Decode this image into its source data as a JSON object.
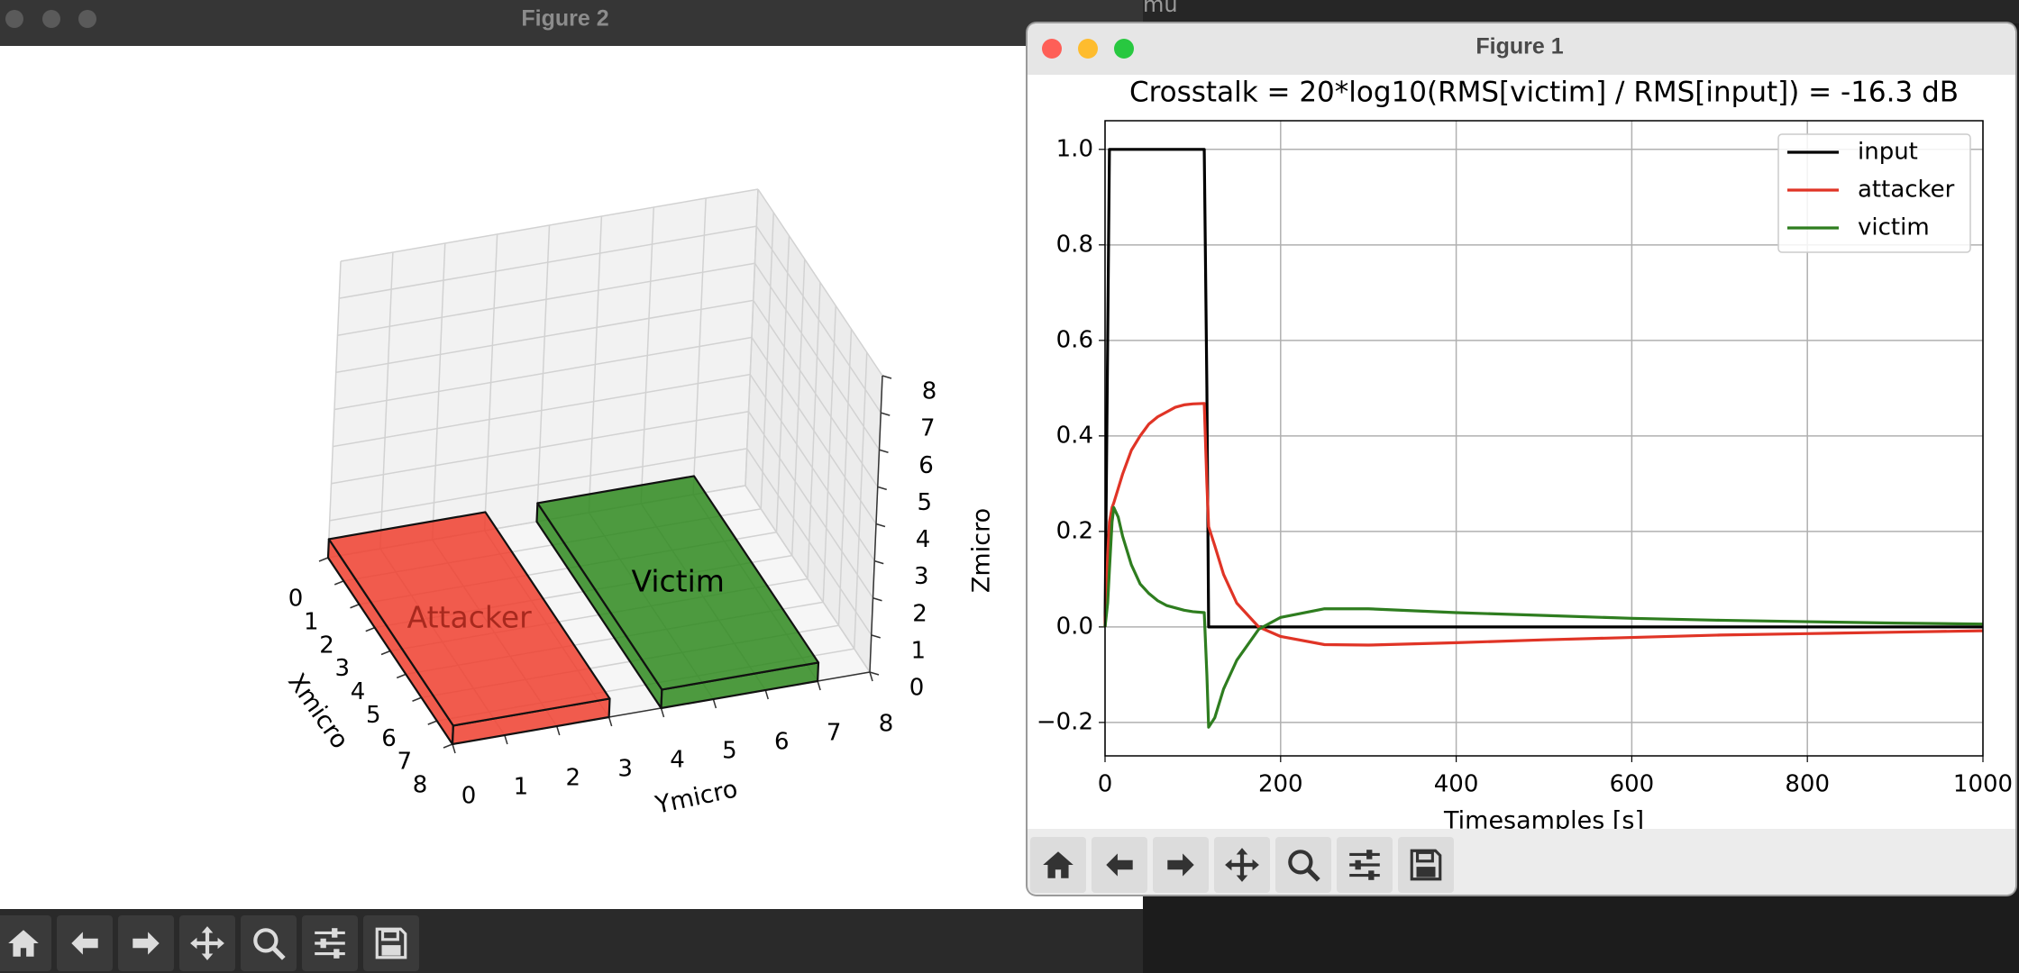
{
  "windows": {
    "background": {
      "title": "mu"
    },
    "figure2": {
      "title": "Figure 2"
    },
    "figure1": {
      "title": "Figure 1"
    }
  },
  "chart_data": [
    {
      "type": "bar3d",
      "xlabel": "Xmicro",
      "ylabel": "Ymicro",
      "zlabel": "Zmicro",
      "xlim": [
        0,
        8
      ],
      "ylim": [
        0,
        8
      ],
      "zlim": [
        0,
        8
      ],
      "xticks": [
        0,
        1,
        2,
        3,
        4,
        5,
        6,
        7,
        8
      ],
      "yticks": [
        0,
        1,
        2,
        3,
        4,
        5,
        6,
        7,
        8
      ],
      "zticks": [
        0,
        1,
        2,
        3,
        4,
        5,
        6,
        7,
        8
      ],
      "grid": true,
      "series": [
        {
          "name": "Attacker",
          "color": "#f0402f",
          "x": [
            0,
            8
          ],
          "y": [
            0,
            3
          ],
          "z": [
            0,
            0.5
          ]
        },
        {
          "name": "Victim",
          "color": "#2f8a1f",
          "x": [
            0,
            8
          ],
          "y": [
            4,
            7
          ],
          "z": [
            0,
            0.5
          ]
        }
      ]
    },
    {
      "type": "line",
      "title": "Crosstalk = 20*log10(RMS[victim] / RMS[input]) = -16.3 dB",
      "xlabel": "Timesamples [s]",
      "x": [
        0,
        3,
        5,
        8,
        10,
        15,
        20,
        30,
        40,
        50,
        60,
        70,
        80,
        90,
        100,
        113,
        116,
        118,
        125,
        135,
        150,
        175,
        200,
        250,
        300,
        400,
        500,
        600,
        700,
        800,
        900,
        1000
      ],
      "series": [
        {
          "name": "input",
          "color": "#000000",
          "values": [
            0,
            0.6,
            1,
            1,
            1,
            1,
            1,
            1,
            1,
            1,
            1,
            1,
            1,
            1,
            1,
            1,
            0.5,
            0,
            0,
            0,
            0,
            0,
            0,
            0,
            0,
            0,
            0,
            0,
            0,
            0,
            0,
            0
          ]
        },
        {
          "name": "attacker",
          "color": "#e03426",
          "values": [
            0,
            0.15,
            0.22,
            0.25,
            0.26,
            0.29,
            0.32,
            0.37,
            0.4,
            0.425,
            0.44,
            0.45,
            0.46,
            0.465,
            0.467,
            0.468,
            0.3,
            0.21,
            0.17,
            0.11,
            0.05,
            0,
            -0.02,
            -0.037,
            -0.038,
            -0.033,
            -0.027,
            -0.022,
            -0.017,
            -0.014,
            -0.011,
            -0.008
          ]
        },
        {
          "name": "victim",
          "color": "#2e7d1f",
          "values": [
            0,
            0.05,
            0.12,
            0.22,
            0.25,
            0.23,
            0.19,
            0.13,
            0.09,
            0.07,
            0.055,
            0.045,
            0.04,
            0.035,
            0.032,
            0.03,
            -0.1,
            -0.21,
            -0.19,
            -0.13,
            -0.07,
            -0.005,
            0.02,
            0.038,
            0.038,
            0.03,
            0.024,
            0.018,
            0.014,
            0.011,
            0.008,
            0.006
          ]
        }
      ],
      "xlim": [
        0,
        1000
      ],
      "ylim": [
        -0.27,
        1.06
      ],
      "xticks": [
        0,
        200,
        400,
        600,
        800,
        1000
      ],
      "yticks": [
        {
          "value": -0.2,
          "label": "−0.2"
        },
        {
          "value": 0,
          "label": "0.0"
        },
        0.2,
        0.4,
        0.6,
        0.8,
        {
          "value": 1,
          "label": "1.0"
        }
      ],
      "grid": true,
      "legend": "upper right"
    }
  ]
}
